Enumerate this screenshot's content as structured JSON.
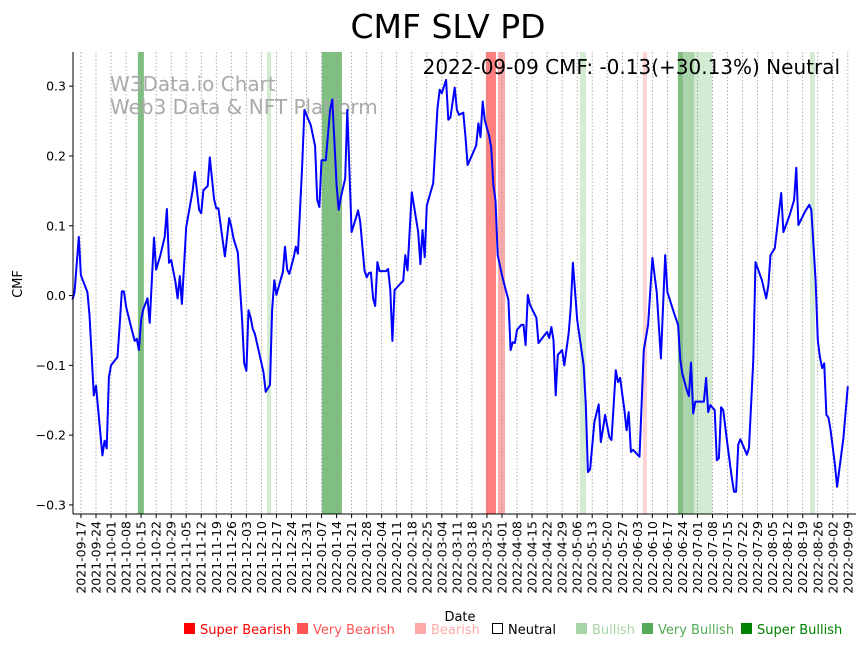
{
  "chart_data": {
    "type": "line",
    "title": "CMF SLV PD",
    "xlabel": "Date",
    "ylabel": "CMF",
    "annotation": "2022-09-09 CMF: -0.13(+30.13%) Neutral",
    "watermark": [
      "W3Data.io Chart",
      "Web3 Data & NFT Platform"
    ],
    "x_origin": "2021-09-17",
    "x_unit": "days since x_origin",
    "xlim": [
      -3.7,
      360.8
    ],
    "ylim": [
      -0.313,
      0.349
    ],
    "grid": "vertical dotted at each x tick",
    "yticks": [
      0.3,
      0.2,
      0.1,
      0.0,
      -0.1,
      -0.2,
      -0.3
    ],
    "ytick_labels": [
      "0.3",
      "0.2",
      "0.1",
      "0.0",
      "−0.1",
      "−0.2",
      "−0.3"
    ],
    "xtick_labels": [
      "2021-09-17",
      "2021-09-24",
      "2021-10-01",
      "2021-10-08",
      "2021-10-15",
      "2021-10-22",
      "2021-10-29",
      "2021-11-05",
      "2021-11-12",
      "2021-11-19",
      "2021-11-26",
      "2021-12-03",
      "2021-12-10",
      "2021-12-17",
      "2021-12-24",
      "2021-12-31",
      "2022-01-07",
      "2022-01-14",
      "2022-01-21",
      "2022-01-28",
      "2022-02-04",
      "2022-02-11",
      "2022-02-18",
      "2022-02-25",
      "2022-03-04",
      "2022-03-11",
      "2022-03-18",
      "2022-03-25",
      "2022-04-01",
      "2022-04-08",
      "2022-04-15",
      "2022-04-22",
      "2022-04-29",
      "2022-05-06",
      "2022-05-13",
      "2022-05-20",
      "2022-05-27",
      "2022-06-03",
      "2022-06-10",
      "2022-06-17",
      "2022-06-24",
      "2022-07-01",
      "2022-07-08",
      "2022-07-15",
      "2022-07-22",
      "2022-07-29",
      "2022-08-05",
      "2022-08-12",
      "2022-08-19",
      "2022-08-26",
      "2022-09-02",
      "2022-09-09"
    ],
    "xtick_step_days": 7,
    "series": [
      {
        "name": "CMF",
        "color": "#0000ff",
        "points": [
          [
            -4,
            -0.006
          ],
          [
            -3,
            0.004
          ],
          [
            -1,
            0.084
          ],
          [
            0,
            0.029
          ],
          [
            3,
            0.005
          ],
          [
            4,
            -0.028
          ],
          [
            6,
            -0.143
          ],
          [
            7,
            -0.129
          ],
          [
            10,
            -0.229
          ],
          [
            11,
            -0.208
          ],
          [
            12,
            -0.219
          ],
          [
            13,
            -0.117
          ],
          [
            14,
            -0.1
          ],
          [
            17,
            -0.088
          ],
          [
            18,
            -0.044
          ],
          [
            19,
            0.006
          ],
          [
            20,
            0.006
          ],
          [
            21,
            -0.016
          ],
          [
            23,
            -0.041
          ],
          [
            25,
            -0.065
          ],
          [
            26,
            -0.062
          ],
          [
            27,
            -0.078
          ],
          [
            28,
            -0.035
          ],
          [
            29,
            -0.02
          ],
          [
            31,
            -0.004
          ],
          [
            32,
            -0.039
          ],
          [
            34,
            0.083
          ],
          [
            35,
            0.037
          ],
          [
            37,
            0.058
          ],
          [
            39,
            0.084
          ],
          [
            40,
            0.124
          ],
          [
            41,
            0.047
          ],
          [
            42,
            0.051
          ],
          [
            44,
            0.019
          ],
          [
            45,
            -0.004
          ],
          [
            46,
            0.028
          ],
          [
            47,
            -0.012
          ],
          [
            49,
            0.098
          ],
          [
            52,
            0.151
          ],
          [
            53,
            0.177
          ],
          [
            55,
            0.123
          ],
          [
            56,
            0.118
          ],
          [
            57,
            0.151
          ],
          [
            59,
            0.157
          ],
          [
            60,
            0.198
          ],
          [
            62,
            0.138
          ],
          [
            63,
            0.125
          ],
          [
            64,
            0.125
          ],
          [
            66,
            0.079
          ],
          [
            67,
            0.056
          ],
          [
            69,
            0.111
          ],
          [
            70,
            0.099
          ],
          [
            71,
            0.082
          ],
          [
            73,
            0.062
          ],
          [
            75,
            -0.035
          ],
          [
            76,
            -0.097
          ],
          [
            77,
            -0.108
          ],
          [
            78,
            -0.021
          ],
          [
            79,
            -0.032
          ],
          [
            80,
            -0.048
          ],
          [
            81,
            -0.055
          ],
          [
            85,
            -0.11
          ],
          [
            86,
            -0.138
          ],
          [
            88,
            -0.128
          ],
          [
            89,
            -0.021
          ],
          [
            90,
            0.022
          ],
          [
            91,
            0.001
          ],
          [
            94,
            0.034
          ],
          [
            95,
            0.07
          ],
          [
            96,
            0.037
          ],
          [
            97,
            0.031
          ],
          [
            99,
            0.054
          ],
          [
            100,
            0.07
          ],
          [
            101,
            0.06
          ],
          [
            103,
            0.187
          ],
          [
            104,
            0.266
          ],
          [
            107,
            0.244
          ],
          [
            109,
            0.214
          ],
          [
            110,
            0.137
          ],
          [
            111,
            0.127
          ],
          [
            112,
            0.194
          ],
          [
            114,
            0.194
          ],
          [
            116,
            0.266
          ],
          [
            117,
            0.281
          ],
          [
            119,
            0.158
          ],
          [
            120,
            0.123
          ],
          [
            121,
            0.141
          ],
          [
            123,
            0.168
          ],
          [
            124,
            0.266
          ],
          [
            126,
            0.091
          ],
          [
            128,
            0.111
          ],
          [
            129,
            0.122
          ],
          [
            130,
            0.106
          ],
          [
            132,
            0.036
          ],
          [
            133,
            0.026
          ],
          [
            134,
            0.032
          ],
          [
            135,
            0.033
          ],
          [
            136,
            -0.004
          ],
          [
            137,
            -0.015
          ],
          [
            138,
            0.048
          ],
          [
            139,
            0.035
          ],
          [
            142,
            0.035
          ],
          [
            143,
            0.038
          ],
          [
            144,
            0.008
          ],
          [
            145,
            -0.065
          ],
          [
            146,
            0.008
          ],
          [
            149,
            0.018
          ],
          [
            150,
            0.021
          ],
          [
            151,
            0.058
          ],
          [
            152,
            0.036
          ],
          [
            154,
            0.148
          ],
          [
            157,
            0.091
          ],
          [
            158,
            0.045
          ],
          [
            159,
            0.094
          ],
          [
            160,
            0.055
          ],
          [
            161,
            0.129
          ],
          [
            164,
            0.161
          ],
          [
            166,
            0.269
          ],
          [
            167,
            0.295
          ],
          [
            168,
            0.29
          ],
          [
            170,
            0.309
          ],
          [
            171,
            0.252
          ],
          [
            172,
            0.255
          ],
          [
            174,
            0.298
          ],
          [
            175,
            0.266
          ],
          [
            176,
            0.259
          ],
          [
            178,
            0.262
          ],
          [
            179,
            0.227
          ],
          [
            180,
            0.187
          ],
          [
            182,
            0.201
          ],
          [
            184,
            0.215
          ],
          [
            185,
            0.247
          ],
          [
            186,
            0.227
          ],
          [
            187,
            0.278
          ],
          [
            188,
            0.251
          ],
          [
            190,
            0.229
          ],
          [
            191,
            0.212
          ],
          [
            192,
            0.158
          ],
          [
            193,
            0.136
          ],
          [
            194,
            0.058
          ],
          [
            196,
            0.029
          ],
          [
            198,
            0.005
          ],
          [
            199,
            -0.006
          ],
          [
            200,
            -0.078
          ],
          [
            201,
            -0.067
          ],
          [
            202,
            -0.068
          ],
          [
            203,
            -0.049
          ],
          [
            205,
            -0.042
          ],
          [
            206,
            -0.042
          ],
          [
            207,
            -0.071
          ],
          [
            208,
            0.001
          ],
          [
            209,
            -0.013
          ],
          [
            212,
            -0.032
          ],
          [
            213,
            -0.068
          ],
          [
            214,
            -0.064
          ],
          [
            215,
            -0.06
          ],
          [
            217,
            -0.052
          ],
          [
            218,
            -0.061
          ],
          [
            219,
            -0.045
          ],
          [
            220,
            -0.064
          ],
          [
            221,
            -0.143
          ],
          [
            222,
            -0.085
          ],
          [
            224,
            -0.078
          ],
          [
            225,
            -0.1
          ],
          [
            227,
            -0.055
          ],
          [
            228,
            -0.018
          ],
          [
            229,
            0.047
          ],
          [
            231,
            -0.035
          ],
          [
            234,
            -0.099
          ],
          [
            235,
            -0.156
          ],
          [
            236,
            -0.253
          ],
          [
            237,
            -0.249
          ],
          [
            239,
            -0.181
          ],
          [
            241,
            -0.156
          ],
          [
            242,
            -0.21
          ],
          [
            243,
            -0.192
          ],
          [
            244,
            -0.171
          ],
          [
            246,
            -0.203
          ],
          [
            247,
            -0.207
          ],
          [
            249,
            -0.107
          ],
          [
            250,
            -0.124
          ],
          [
            251,
            -0.118
          ],
          [
            253,
            -0.164
          ],
          [
            254,
            -0.193
          ],
          [
            255,
            -0.167
          ],
          [
            256,
            -0.224
          ],
          [
            257,
            -0.221
          ],
          [
            260,
            -0.231
          ],
          [
            262,
            -0.078
          ],
          [
            264,
            -0.042
          ],
          [
            266,
            0.054
          ],
          [
            267,
            0.03
          ],
          [
            268,
            0.005
          ],
          [
            270,
            -0.09
          ],
          [
            272,
            0.058
          ],
          [
            273,
            0.005
          ],
          [
            276,
            -0.024
          ],
          [
            278,
            -0.042
          ],
          [
            279,
            -0.092
          ],
          [
            280,
            -0.112
          ],
          [
            282,
            -0.135
          ],
          [
            283,
            -0.144
          ],
          [
            284,
            -0.096
          ],
          [
            285,
            -0.169
          ],
          [
            286,
            -0.152
          ],
          [
            290,
            -0.152
          ],
          [
            291,
            -0.118
          ],
          [
            292,
            -0.167
          ],
          [
            293,
            -0.157
          ],
          [
            295,
            -0.164
          ],
          [
            296,
            -0.236
          ],
          [
            297,
            -0.233
          ],
          [
            298,
            -0.16
          ],
          [
            299,
            -0.164
          ],
          [
            301,
            -0.214
          ],
          [
            303,
            -0.261
          ],
          [
            304,
            -0.281
          ],
          [
            305,
            -0.281
          ],
          [
            306,
            -0.213
          ],
          [
            307,
            -0.206
          ],
          [
            310,
            -0.228
          ],
          [
            311,
            -0.218
          ],
          [
            313,
            -0.092
          ],
          [
            314,
            0.048
          ],
          [
            317,
            0.022
          ],
          [
            319,
            -0.004
          ],
          [
            320,
            0.015
          ],
          [
            321,
            0.058
          ],
          [
            323,
            0.068
          ],
          [
            326,
            0.147
          ],
          [
            327,
            0.091
          ],
          [
            330,
            0.116
          ],
          [
            332,
            0.137
          ],
          [
            333,
            0.183
          ],
          [
            334,
            0.101
          ],
          [
            337,
            0.12
          ],
          [
            339,
            0.13
          ],
          [
            340,
            0.123
          ],
          [
            342,
            0.022
          ],
          [
            343,
            -0.064
          ],
          [
            344,
            -0.088
          ],
          [
            345,
            -0.104
          ],
          [
            346,
            -0.097
          ],
          [
            347,
            -0.171
          ],
          [
            348,
            -0.175
          ],
          [
            349,
            -0.194
          ],
          [
            351,
            -0.242
          ],
          [
            352,
            -0.274
          ],
          [
            355,
            -0.203
          ],
          [
            357,
            -0.13
          ]
        ]
      }
    ],
    "bands": [
      {
        "start": 26.5,
        "end": 29.3,
        "category": "Super Bullish"
      },
      {
        "start": 86.6,
        "end": 88.5,
        "category": "Bullish"
      },
      {
        "start": 112.2,
        "end": 121.5,
        "category": "Super Bullish"
      },
      {
        "start": 188.5,
        "end": 193.2,
        "category": "Super Bearish"
      },
      {
        "start": 194.1,
        "end": 197.4,
        "category": "Very Bearish"
      },
      {
        "start": 232.3,
        "end": 235.1,
        "category": "Bullish"
      },
      {
        "start": 261.6,
        "end": 263.5,
        "category": "Bearish"
      },
      {
        "start": 277.9,
        "end": 280.2,
        "category": "Super Bullish"
      },
      {
        "start": 280.2,
        "end": 285.4,
        "category": "Very Bullish"
      },
      {
        "start": 285.4,
        "end": 293.8,
        "category": "Bullish"
      },
      {
        "start": 339.4,
        "end": 341.7,
        "category": "Bullish"
      }
    ],
    "legend_position": "bottom",
    "legend": [
      {
        "label": "Super Bearish",
        "color": "#ff0000",
        "text_color": "#ff0000"
      },
      {
        "label": "Very Bearish",
        "color": "#ff5555",
        "text_color": "#ff5555"
      },
      {
        "label": "Bearish",
        "color": "#ffaaaa",
        "text_color": "#ffaaaa"
      },
      {
        "label": "Neutral",
        "color": "none",
        "text_color": "#000000"
      },
      {
        "label": "Bullish",
        "color": "#a8d5a8",
        "text_color": "#a8d5a8"
      },
      {
        "label": "Very Bullish",
        "color": "#55aa55",
        "text_color": "#55aa55"
      },
      {
        "label": "Super Bullish",
        "color": "#008000",
        "text_color": "#008000"
      }
    ]
  }
}
